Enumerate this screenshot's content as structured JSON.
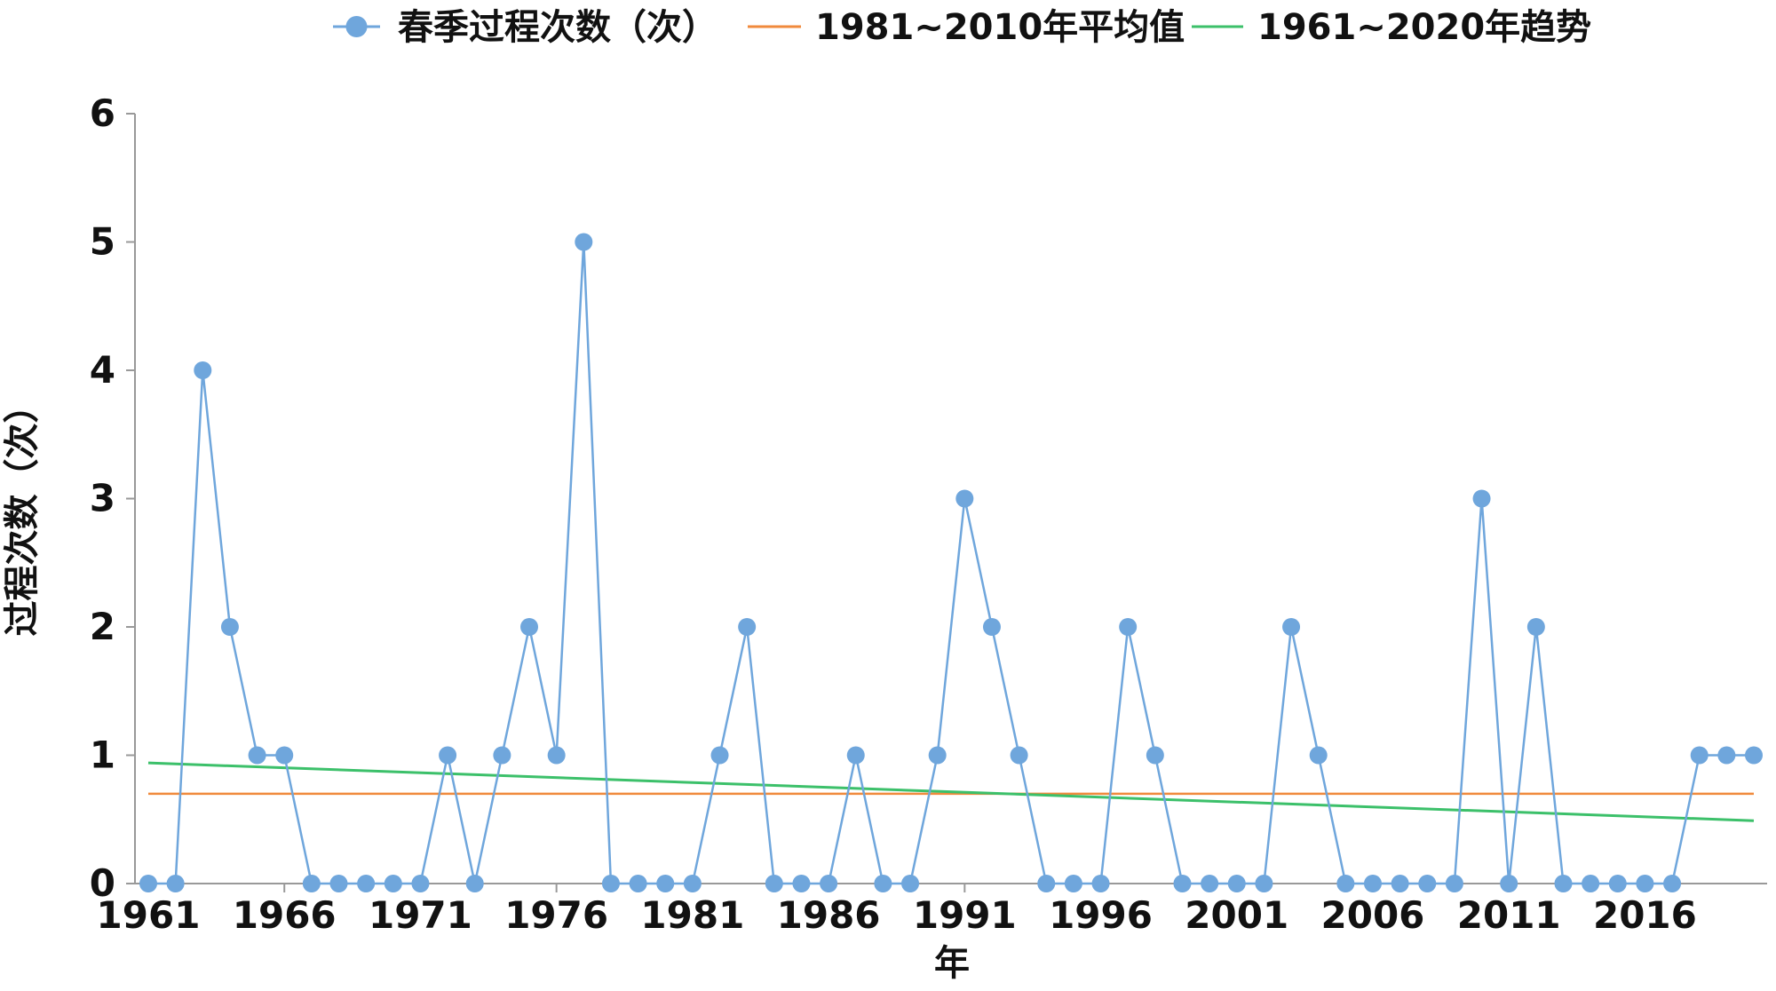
{
  "chart_data": {
    "type": "line",
    "xlabel": "年",
    "ylabel": "过程次数（次）",
    "x_start": 1961,
    "x_end": 2020,
    "ylim": [
      0,
      6
    ],
    "yticks": [
      "0",
      "1",
      "2",
      "3",
      "4",
      "5",
      "6"
    ],
    "xticks": [
      "1961",
      "1966",
      "1971",
      "1976",
      "1981",
      "1986",
      "1991",
      "1996",
      "2001",
      "2006",
      "2011",
      "2016"
    ],
    "legend_position": "top-center",
    "series": [
      {
        "name": "春季过程次数（次）",
        "kind": "line-marker",
        "color": "#6fa6dc",
        "values": [
          0,
          0,
          4,
          2,
          1,
          1,
          0,
          0,
          0,
          0,
          0,
          1,
          0,
          1,
          2,
          1,
          5,
          0,
          0,
          0,
          0,
          1,
          2,
          0,
          0,
          0,
          1,
          0,
          0,
          1,
          3,
          2,
          1,
          0,
          0,
          0,
          2,
          1,
          0,
          0,
          0,
          0,
          2,
          1,
          0,
          0,
          0,
          0,
          0,
          3,
          0,
          2,
          0,
          0,
          0,
          0,
          0,
          1,
          1,
          1
        ]
      },
      {
        "name": "1981~2010年平均值",
        "kind": "constant",
        "color": "#f08a3c",
        "value": 0.7
      },
      {
        "name": "1961~2020年趋势",
        "kind": "trend",
        "color": "#3cc06a",
        "start_value": 0.94,
        "end_value": 0.49
      }
    ]
  }
}
